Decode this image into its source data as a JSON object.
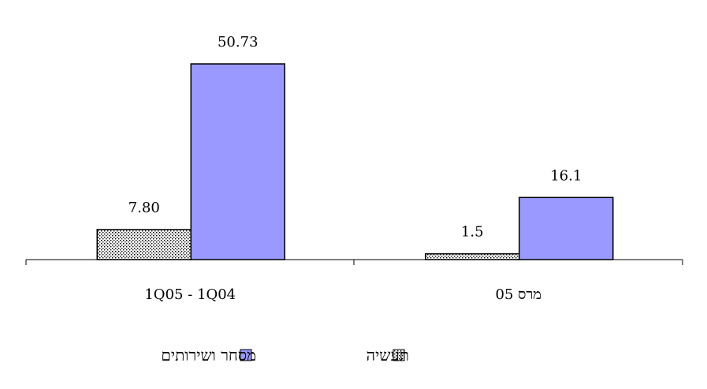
{
  "chart_data": {
    "type": "bar",
    "categories": [
      "1Q05 - 1Q04",
      "מרס 05"
    ],
    "series": [
      {
        "name": "תעשיה",
        "values": [
          7.8,
          1.5
        ],
        "value_labels": [
          "7.80",
          "1.5"
        ],
        "fill": "#ffffff",
        "pattern": "dotted"
      },
      {
        "name": "מסחר ושירותים",
        "values": [
          50.73,
          16.1
        ],
        "value_labels": [
          "50.73",
          "16.1"
        ],
        "fill": "#9999ff",
        "pattern": "solid"
      }
    ],
    "ylim": [
      0,
      50.73
    ],
    "grid": false,
    "legend_position": "bottom",
    "colors": {
      "solid_series": "#9999ff",
      "outline": "#000000"
    }
  }
}
